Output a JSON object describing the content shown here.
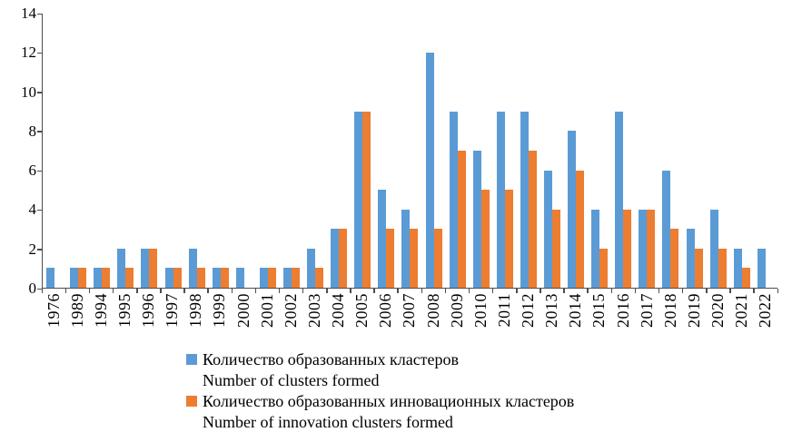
{
  "chart_data": {
    "type": "bar",
    "title": "",
    "categories": [
      "1976",
      "1989",
      "1994",
      "1995",
      "1996",
      "1997",
      "1998",
      "1999",
      "2000",
      "2001",
      "2002",
      "2003",
      "2004",
      "2005",
      "2006",
      "2007",
      "2008",
      "2009",
      "2010",
      "2011",
      "2012",
      "2013",
      "2014",
      "2015",
      "2016",
      "2017",
      "2018",
      "2019",
      "2020",
      "2021",
      "2022"
    ],
    "series": [
      {
        "name_ru": "Количество образованных кластеров",
        "name_en": "Number of clusters formed",
        "color": "#5B9BD5",
        "values": [
          1,
          1,
          1,
          2,
          2,
          1,
          2,
          1,
          1,
          1,
          1,
          2,
          3,
          9,
          5,
          4,
          12,
          9,
          7,
          9,
          9,
          6,
          8,
          4,
          9,
          4,
          6,
          3,
          4,
          2,
          2
        ]
      },
      {
        "name_ru": "Количество образованных инновационных кластеров",
        "name_en": "Number of innovation clusters formed",
        "color": "#ED7D31",
        "values": [
          0,
          1,
          1,
          1,
          2,
          1,
          1,
          1,
          0,
          1,
          1,
          1,
          3,
          9,
          3,
          3,
          3,
          7,
          5,
          5,
          7,
          4,
          6,
          2,
          4,
          4,
          3,
          2,
          2,
          1,
          0
        ]
      }
    ],
    "ylim": [
      0,
      14
    ],
    "ytick_step": 2,
    "grid": false,
    "legend_position": "bottom",
    "axis_color": "#4d4d4d"
  }
}
